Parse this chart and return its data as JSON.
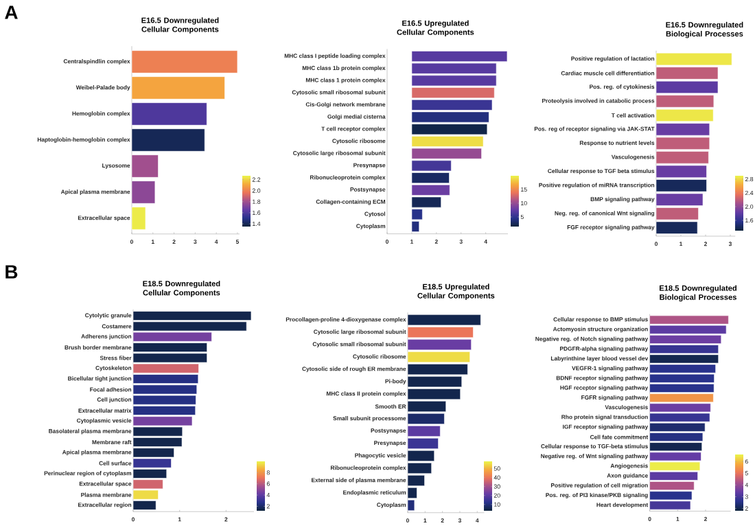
{
  "chart_data": [
    {
      "type": "bar",
      "orientation": "horizontal",
      "title": "E16.5 Downregulated Cellular Components",
      "annotations": [
        "A"
      ],
      "categories": [
        "Centralspindlin complex",
        "Weibel-Palade body",
        "Hemoglobin complex",
        "Haptoglobin-hemoglobin complex",
        "Lysosome",
        "Apical plasma membrane",
        "Extracellular space"
      ],
      "values": [
        5.0,
        4.4,
        3.55,
        3.45,
        1.25,
        1.1,
        0.65
      ],
      "cvalues": [
        2.0,
        2.1,
        1.6,
        1.4,
        1.8,
        1.75,
        2.25
      ],
      "clim": [
        1.35,
        2.27
      ],
      "cticks": [
        1.4,
        1.6,
        1.8,
        {
          "value": 2,
          "label": "2.0"
        },
        2.2
      ],
      "xlim": [
        0,
        5.1
      ],
      "xticks": [
        0,
        1,
        2,
        3,
        4,
        5
      ]
    },
    {
      "type": "bar",
      "orientation": "horizontal",
      "title": "E16.5 Upregulated Cellular Components",
      "categories": [
        "MHC class I peptide loading complex",
        "MHC class 1b protein complex",
        "MHC class 1 protein complex",
        "Cytosolic small ribosomal subunit",
        "Cis-Golgi network membrane",
        "Golgi medial cisterna",
        "T cell receptor complex",
        "Cytosolic ribosome",
        "Cytosolic large ribosomal subunit",
        "Presynapse",
        "Ribonucleoprotein complex",
        "Postsynapse",
        "Collagen-containing ECM",
        "Cytosol",
        "Cytoplasm"
      ],
      "base": [
        1,
        1,
        1,
        1,
        1,
        1,
        1,
        1,
        1,
        1,
        1,
        1,
        1,
        1,
        1
      ],
      "values": [
        3.87,
        3.43,
        3.43,
        3.35,
        3.26,
        3.13,
        3.06,
        2.9,
        2.83,
        1.6,
        1.52,
        1.54,
        1.19,
        0.43,
        0.3
      ],
      "cvalues": [
        7,
        7,
        7,
        13,
        5.5,
        4,
        2,
        19,
        10,
        6,
        3,
        8,
        2.5,
        4.5,
        4
      ],
      "clim": [
        1.5,
        20
      ],
      "cticks": [
        5,
        10,
        15
      ],
      "xlim": [
        0,
        4.9
      ],
      "xticks": [
        0,
        1,
        2,
        3,
        4
      ]
    },
    {
      "type": "bar",
      "orientation": "horizontal",
      "title": "E16.5 Downregulated Biological Processes",
      "categories": [
        "Positive regulation of lactation",
        "Cardiac muscle cell differentiation",
        "Pos. reg. of cytokinesis",
        "Proteolysis involved in catabolic process",
        "T cell activation",
        "Pos. reg of receptor signaling via JAK-STAT",
        "Response to nutrient levels",
        "Vasculogenesis",
        "Cellular response to TGF beta stimulus",
        "Positive regulation of miRNA transcription",
        "BMP signaling pathway",
        "Neg. reg. of canonical Wnt signaling",
        "FGF receptor signaling pathway"
      ],
      "values": [
        3.06,
        2.5,
        2.5,
        2.33,
        2.31,
        2.16,
        2.16,
        2.12,
        2.04,
        2.04,
        1.89,
        1.71,
        1.67
      ],
      "cvalues": [
        2.85,
        2.2,
        1.8,
        2.2,
        2.85,
        1.85,
        2.2,
        2.2,
        1.85,
        1.4,
        1.85,
        2.2,
        1.4
      ],
      "clim": [
        1.3,
        2.9
      ],
      "cticks": [
        1.6,
        {
          "value": 2,
          "label": "2.0"
        },
        2.4,
        2.8
      ],
      "xlim": [
        0,
        3.2
      ],
      "xticks": [
        0,
        1,
        2,
        3
      ]
    },
    {
      "type": "bar",
      "orientation": "horizontal",
      "title": "E18.5 Downregulated Cellular Components",
      "annotations": [
        "B"
      ],
      "categories": [
        "Cytolytic granule",
        "Costamere",
        "Adherens junction",
        "Brush border membrane",
        "Stress fiber",
        "Cytoskeleton",
        "Bicellular tight junction",
        "Focal adhesion",
        "Cell junction",
        "Extracellular matrix",
        "Cytoplasmic vesicle",
        "Basolateral plasma membrane",
        "Membrane raft",
        "Apical plasma membrane",
        "Cell surface",
        "Perinuclear region of cytoplasm",
        "Extracellular space",
        "Plasma membrane",
        "Extracellular region"
      ],
      "values": [
        2.54,
        2.44,
        1.69,
        1.59,
        1.59,
        1.41,
        1.4,
        1.37,
        1.35,
        1.34,
        1.27,
        1.06,
        1.05,
        0.88,
        0.82,
        0.72,
        0.64,
        0.54,
        0.49
      ],
      "cvalues": [
        1.5,
        1.5,
        4.5,
        1.5,
        1.5,
        6.5,
        2.5,
        2.5,
        2.5,
        2.5,
        4.5,
        1.5,
        1.5,
        1.5,
        3,
        1.5,
        6.5,
        9.5,
        1.5
      ],
      "clim": [
        1.2,
        10
      ],
      "cticks": [
        2,
        4,
        6,
        8
      ],
      "xlim": [
        0,
        2.6
      ],
      "xticks": [
        0,
        1,
        2
      ]
    },
    {
      "type": "bar",
      "orientation": "horizontal",
      "title": "E18.5 Upregulated Cellular Components",
      "categories": [
        "Procollagen-proline 4-dioxygenase complex",
        "Cytosolic large ribosomal subunit",
        "Cytosolic small ribosomal subunit",
        "Cytosolic ribosome",
        "Cytosolic side of rough ER membrane",
        "Pi-body",
        "MHC class II protein complex",
        "Smooth ER",
        "Small subunit processome",
        "Postsynapse",
        "Presynapse",
        "Phagocytic vesicle",
        "Ribonucleoprotein complex",
        "External side of plasma membrane",
        "Endoplasmic reticulum",
        "Cytoplasm"
      ],
      "values": [
        4.2,
        3.77,
        3.66,
        3.58,
        3.45,
        3.11,
        3.03,
        2.2,
        2.11,
        1.87,
        1.76,
        1.53,
        1.37,
        0.97,
        0.53,
        0.39
      ],
      "cvalues": [
        5,
        40,
        22,
        55,
        5,
        5,
        5,
        5,
        8,
        20,
        15,
        5,
        5,
        5,
        5,
        10
      ],
      "clim": [
        3,
        58
      ],
      "cticks": [
        10,
        20,
        30,
        40,
        50
      ],
      "xlim": [
        0,
        4.4
      ],
      "xticks": [
        0,
        1,
        2,
        3,
        4
      ]
    },
    {
      "type": "bar",
      "orientation": "horizontal",
      "title": "E18.5 Downregulated Biological Processes",
      "categories": [
        "Cellular response to BMP stimulus",
        "Actomyosin structure organization",
        "Negative reg. of Notch signaling pathway",
        "PDGFR-alpha signaling pathway",
        "Labyrinthine layer blood vessel dev",
        "VEGFR-1 signaling pathway",
        "BDNF receptor signaling pathway",
        "HGF receptor signaling pathway",
        "FGFR signaling pathway",
        "Vasculogenesis",
        "Rho protein signal transduction",
        "IGF receptor signaling pathway",
        "Cell fate commitment",
        "Cellular response to TGF-beta stimulus",
        "Negative reg. of Wnt signaling pathway",
        "Angiogenesis",
        "Axon guidance",
        "Positive regulation of cell migration",
        "Pos. reg. of PI3 kinase/PKB signaling",
        "Heart development"
      ],
      "values": [
        2.82,
        2.74,
        2.56,
        2.46,
        2.46,
        2.36,
        2.31,
        2.3,
        2.28,
        2.18,
        2.15,
        1.98,
        1.9,
        1.87,
        1.84,
        1.8,
        1.72,
        1.59,
        1.51,
        1.46
      ],
      "cvalues": [
        4.3,
        3.3,
        3.5,
        2.8,
        2.0,
        2.6,
        2.6,
        2.6,
        5.5,
        3.5,
        2.8,
        2.3,
        2.5,
        2.0,
        3.4,
        6.5,
        3.3,
        4.3,
        2.6,
        3.0
      ],
      "clim": [
        1.8,
        6.6
      ],
      "cticks": [
        2,
        3,
        4,
        5,
        6
      ],
      "xlim": [
        0,
        2.9
      ],
      "xticks": [
        0,
        1,
        2
      ]
    }
  ]
}
